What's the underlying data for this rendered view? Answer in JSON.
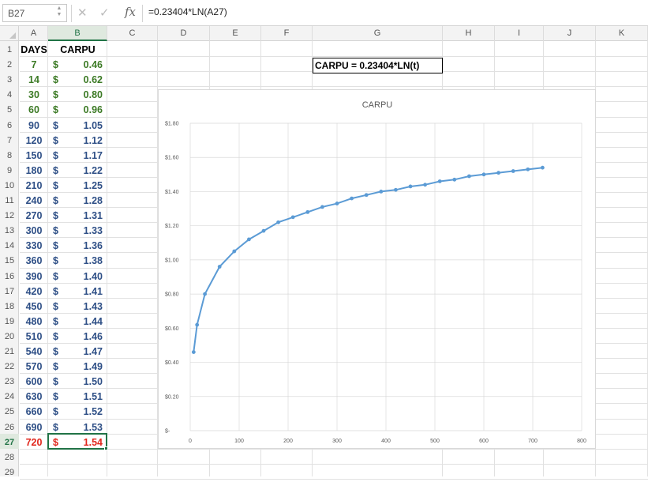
{
  "formula_bar": {
    "cell_ref": "B27",
    "cancel_icon": "✕",
    "enter_icon": "✓",
    "fx_label": "fx",
    "formula": "=0.23404*LN(A27)"
  },
  "columns": [
    "A",
    "B",
    "C",
    "D",
    "E",
    "F",
    "G",
    "H",
    "I",
    "J",
    "K"
  ],
  "selected_column": "B",
  "selected_row": 27,
  "rows": [
    "1",
    "2",
    "3",
    "4",
    "5",
    "6",
    "7",
    "8",
    "9",
    "10",
    "11",
    "12",
    "13",
    "14",
    "15",
    "16",
    "17",
    "18",
    "19",
    "20",
    "21",
    "22",
    "23",
    "24",
    "25",
    "26",
    "27",
    "28",
    "29"
  ],
  "table": {
    "header_days": "DAYS",
    "header_carpu": "CARPU",
    "dollar": "$",
    "data": [
      {
        "days": "7",
        "carpu": "0.46",
        "color": "green"
      },
      {
        "days": "14",
        "carpu": "0.62",
        "color": "green"
      },
      {
        "days": "30",
        "carpu": "0.80",
        "color": "green"
      },
      {
        "days": "60",
        "carpu": "0.96",
        "color": "green"
      },
      {
        "days": "90",
        "carpu": "1.05",
        "color": "blue"
      },
      {
        "days": "120",
        "carpu": "1.12",
        "color": "blue"
      },
      {
        "days": "150",
        "carpu": "1.17",
        "color": "blue"
      },
      {
        "days": "180",
        "carpu": "1.22",
        "color": "blue"
      },
      {
        "days": "210",
        "carpu": "1.25",
        "color": "blue"
      },
      {
        "days": "240",
        "carpu": "1.28",
        "color": "blue"
      },
      {
        "days": "270",
        "carpu": "1.31",
        "color": "blue"
      },
      {
        "days": "300",
        "carpu": "1.33",
        "color": "blue"
      },
      {
        "days": "330",
        "carpu": "1.36",
        "color": "blue"
      },
      {
        "days": "360",
        "carpu": "1.38",
        "color": "blue"
      },
      {
        "days": "390",
        "carpu": "1.40",
        "color": "blue"
      },
      {
        "days": "420",
        "carpu": "1.41",
        "color": "blue"
      },
      {
        "days": "450",
        "carpu": "1.43",
        "color": "blue"
      },
      {
        "days": "480",
        "carpu": "1.44",
        "color": "blue"
      },
      {
        "days": "510",
        "carpu": "1.46",
        "color": "blue"
      },
      {
        "days": "540",
        "carpu": "1.47",
        "color": "blue"
      },
      {
        "days": "570",
        "carpu": "1.49",
        "color": "blue"
      },
      {
        "days": "600",
        "carpu": "1.50",
        "color": "blue"
      },
      {
        "days": "630",
        "carpu": "1.51",
        "color": "blue"
      },
      {
        "days": "660",
        "carpu": "1.52",
        "color": "blue"
      },
      {
        "days": "690",
        "carpu": "1.53",
        "color": "blue"
      },
      {
        "days": "720",
        "carpu": "1.54",
        "color": "red"
      }
    ]
  },
  "textbox": "CARPU = 0.23404*LN(t)",
  "colors": {
    "green": "#3c7a25",
    "blue": "#2e4f86",
    "red": "#e1261c",
    "series": "#5b9bd5",
    "selection": "#217346"
  },
  "chart_data": {
    "type": "scatter",
    "title": "CARPU",
    "xlabel": "",
    "ylabel": "",
    "xlim": [
      0,
      800
    ],
    "ylim": [
      0,
      1.8
    ],
    "x_ticks": [
      "0",
      "100",
      "200",
      "300",
      "400",
      "500",
      "600",
      "700",
      "800"
    ],
    "y_ticks": [
      "$-",
      "$0.20",
      "$0.40",
      "$0.60",
      "$0.80",
      "$1.00",
      "$1.20",
      "$1.40",
      "$1.60",
      "$1.80"
    ],
    "grid": true,
    "series": [
      {
        "x": [
          7,
          14,
          30,
          60,
          90,
          120,
          150,
          180,
          210,
          240,
          270,
          300,
          330,
          360,
          390,
          420,
          450,
          480,
          510,
          540,
          570,
          600,
          630,
          660,
          690,
          720
        ],
        "y": [
          0.46,
          0.62,
          0.8,
          0.96,
          1.05,
          1.12,
          1.17,
          1.22,
          1.25,
          1.28,
          1.31,
          1.33,
          1.36,
          1.38,
          1.4,
          1.41,
          1.43,
          1.44,
          1.46,
          1.47,
          1.49,
          1.5,
          1.51,
          1.52,
          1.53,
          1.54
        ]
      }
    ]
  }
}
